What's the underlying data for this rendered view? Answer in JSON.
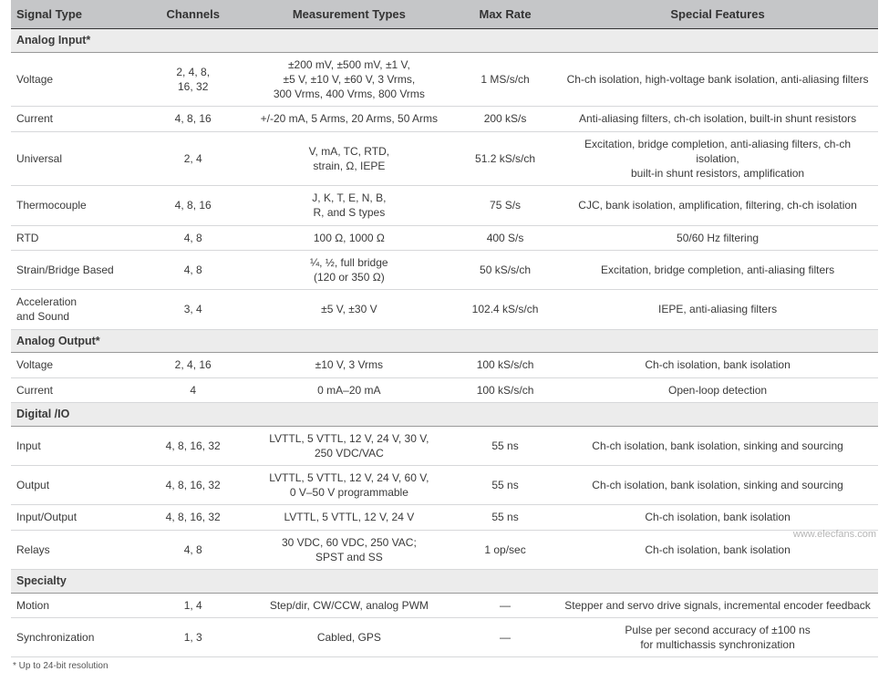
{
  "columns": [
    "Signal Type",
    "Channels",
    "Measurement Types",
    "Max Rate",
    "Special Features"
  ],
  "footnote": "* Up to 24-bit resolution",
  "watermark": "www.elecfans.com",
  "sections": [
    {
      "title": "Analog Input*",
      "rows": [
        {
          "signal": "Voltage",
          "channels": "2, 4, 8,\n16, 32",
          "types": "±200 mV, ±500 mV, ±1 V,\n±5 V, ±10 V, ±60 V, 3 Vrms,\n300 Vrms, 400 Vrms, 800 Vrms",
          "rate": "1 MS/s/ch",
          "features": "Ch-ch isolation, high-voltage bank isolation, anti-aliasing filters"
        },
        {
          "signal": "Current",
          "channels": "4, 8, 16",
          "types": "+/-20 mA, 5 Arms, 20 Arms, 50 Arms",
          "rate": "200 kS/s",
          "features": "Anti-aliasing filters, ch-ch isolation, built-in shunt resistors"
        },
        {
          "signal": "Universal",
          "channels": "2, 4",
          "types": "V, mA, TC, RTD,\nstrain, Ω, IEPE",
          "rate": "51.2 kS/s/ch",
          "features": "Excitation, bridge completion, anti-aliasing filters, ch-ch isolation,\nbuilt-in shunt resistors, amplification"
        },
        {
          "signal": "Thermocouple",
          "channels": "4, 8, 16",
          "types": "J, K, T, E, N, B,\nR, and S types",
          "rate": "75 S/s",
          "features": "CJC, bank isolation, amplification, filtering, ch-ch isolation"
        },
        {
          "signal": "RTD",
          "channels": "4, 8",
          "types": "100 Ω, 1000 Ω",
          "rate": "400 S/s",
          "features": "50/60 Hz filtering"
        },
        {
          "signal": "Strain/Bridge Based",
          "channels": "4, 8",
          "types": "¼, ½, full bridge\n(120 or 350 Ω)",
          "rate": "50 kS/s/ch",
          "features": "Excitation, bridge completion, anti-aliasing filters"
        },
        {
          "signal": "Acceleration\nand Sound",
          "channels": "3, 4",
          "types": "±5 V, ±30 V",
          "rate": "102.4 kS/s/ch",
          "features": "IEPE, anti-aliasing filters"
        }
      ]
    },
    {
      "title": "Analog Output*",
      "rows": [
        {
          "signal": "Voltage",
          "channels": "2, 4, 16",
          "types": "±10 V, 3 Vrms",
          "rate": "100 kS/s/ch",
          "features": "Ch-ch isolation, bank isolation"
        },
        {
          "signal": "Current",
          "channels": "4",
          "types": "0 mA–20 mA",
          "rate": "100 kS/s/ch",
          "features": "Open-loop detection"
        }
      ]
    },
    {
      "title": "Digital /IO",
      "rows": [
        {
          "signal": "Input",
          "channels": "4, 8, 16, 32",
          "types": "LVTTL, 5 VTTL, 12 V, 24 V, 30 V,\n250 VDC/VAC",
          "rate": "55 ns",
          "features": "Ch-ch isolation, bank isolation, sinking and sourcing"
        },
        {
          "signal": "Output",
          "channels": "4, 8, 16, 32",
          "types": "LVTTL, 5 VTTL, 12 V, 24 V, 60 V,\n0 V–50 V programmable",
          "rate": "55 ns",
          "features": "Ch-ch isolation, bank isolation, sinking and sourcing"
        },
        {
          "signal": "Input/Output",
          "channels": "4, 8, 16, 32",
          "types": "LVTTL, 5 VTTL, 12 V, 24 V",
          "rate": "55 ns",
          "features": "Ch-ch isolation, bank isolation"
        },
        {
          "signal": "Relays",
          "channels": "4, 8",
          "types": "30 VDC, 60 VDC, 250 VAC;\nSPST and SS",
          "rate": "1 op/sec",
          "features": "Ch-ch isolation, bank isolation"
        }
      ]
    },
    {
      "title": "Specialty",
      "rows": [
        {
          "signal": "Motion",
          "channels": "1, 4",
          "types": "Step/dir, CW/CCW, analog PWM",
          "rate": "—",
          "features": "Stepper and servo drive signals, incremental encoder feedback"
        },
        {
          "signal": "Synchronization",
          "channels": "1, 3",
          "types": "Cabled, GPS",
          "rate": "—",
          "features": "Pulse per second accuracy of ±100 ns\nfor multichassis synchronization"
        }
      ]
    }
  ]
}
